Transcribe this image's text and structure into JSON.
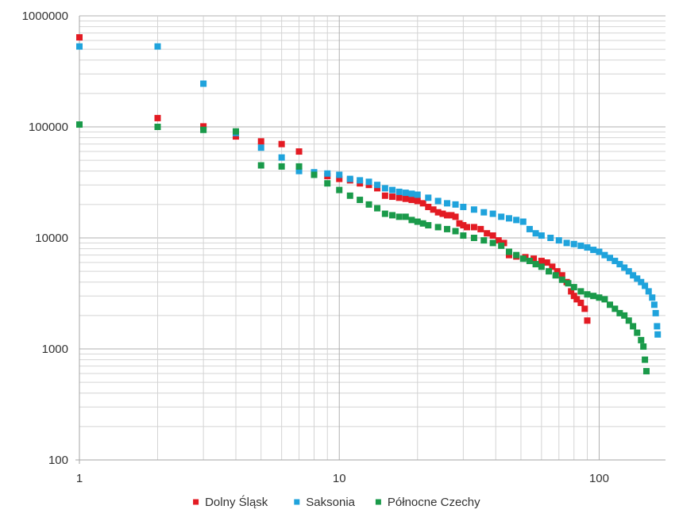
{
  "chart_data": {
    "type": "scatter",
    "title": "",
    "xlabel": "",
    "ylabel": "",
    "x_scale": "log",
    "y_scale": "log",
    "xlim": [
      1,
      180
    ],
    "ylim": [
      100,
      1000000
    ],
    "x_ticks": [
      {
        "value": 1,
        "label": "1"
      },
      {
        "value": 10,
        "label": "10"
      },
      {
        "value": 100,
        "label": "100"
      }
    ],
    "y_ticks": [
      {
        "value": 100,
        "label": "100"
      },
      {
        "value": 1000,
        "label": "1000"
      },
      {
        "value": 10000,
        "label": "10000"
      },
      {
        "value": 100000,
        "label": "100000"
      },
      {
        "value": 1000000,
        "label": "1000000"
      }
    ],
    "grid": true,
    "legend_position": "bottom",
    "series": [
      {
        "name": "Dolny Śląsk",
        "color": "#e31b23",
        "points": [
          [
            1,
            640000
          ],
          [
            2,
            120000
          ],
          [
            3,
            101000
          ],
          [
            4,
            82000
          ],
          [
            5,
            74000
          ],
          [
            6,
            70000
          ],
          [
            7,
            60000
          ],
          [
            8,
            38000
          ],
          [
            9,
            36000
          ],
          [
            10,
            34000
          ],
          [
            11,
            33000
          ],
          [
            12,
            31000
          ],
          [
            13,
            30000
          ],
          [
            14,
            28000
          ],
          [
            15,
            24000
          ],
          [
            16,
            23500
          ],
          [
            17,
            23000
          ],
          [
            18,
            22500
          ],
          [
            19,
            22000
          ],
          [
            20,
            21500
          ],
          [
            21,
            20500
          ],
          [
            22,
            19000
          ],
          [
            23,
            18000
          ],
          [
            24,
            17000
          ],
          [
            25,
            16500
          ],
          [
            26,
            16000
          ],
          [
            27,
            16000
          ],
          [
            28,
            15500
          ],
          [
            29,
            13500
          ],
          [
            30,
            13000
          ],
          [
            31,
            12500
          ],
          [
            33,
            12500
          ],
          [
            35,
            12000
          ],
          [
            37,
            11000
          ],
          [
            39,
            10500
          ],
          [
            41,
            9500
          ],
          [
            43,
            9000
          ],
          [
            45,
            7000
          ],
          [
            48,
            6800
          ],
          [
            52,
            6700
          ],
          [
            56,
            6500
          ],
          [
            60,
            6200
          ],
          [
            63,
            6000
          ],
          [
            66,
            5500
          ],
          [
            69,
            5000
          ],
          [
            72,
            4600
          ],
          [
            75,
            4000
          ],
          [
            78,
            3300
          ],
          [
            80,
            3000
          ],
          [
            82,
            2800
          ],
          [
            85,
            2600
          ],
          [
            88,
            2300
          ],
          [
            90,
            1800
          ]
        ]
      },
      {
        "name": "Saksonia",
        "color": "#1fa3dc",
        "points": [
          [
            1,
            530000
          ],
          [
            2,
            530000
          ],
          [
            3,
            245000
          ],
          [
            4,
            88000
          ],
          [
            5,
            65000
          ],
          [
            6,
            53000
          ],
          [
            7,
            40000
          ],
          [
            8,
            39000
          ],
          [
            9,
            38000
          ],
          [
            10,
            37000
          ],
          [
            11,
            34000
          ],
          [
            12,
            33000
          ],
          [
            13,
            32000
          ],
          [
            14,
            30000
          ],
          [
            15,
            28000
          ],
          [
            16,
            27000
          ],
          [
            17,
            26000
          ],
          [
            18,
            25500
          ],
          [
            19,
            25000
          ],
          [
            20,
            24500
          ],
          [
            22,
            23000
          ],
          [
            24,
            21500
          ],
          [
            26,
            20500
          ],
          [
            28,
            20000
          ],
          [
            30,
            19000
          ],
          [
            33,
            18000
          ],
          [
            36,
            17000
          ],
          [
            39,
            16500
          ],
          [
            42,
            15500
          ],
          [
            45,
            15000
          ],
          [
            48,
            14500
          ],
          [
            51,
            14000
          ],
          [
            54,
            12000
          ],
          [
            57,
            11000
          ],
          [
            60,
            10500
          ],
          [
            65,
            10000
          ],
          [
            70,
            9500
          ],
          [
            75,
            9000
          ],
          [
            80,
            8800
          ],
          [
            85,
            8500
          ],
          [
            90,
            8200
          ],
          [
            95,
            7800
          ],
          [
            100,
            7500
          ],
          [
            105,
            7000
          ],
          [
            110,
            6600
          ],
          [
            115,
            6200
          ],
          [
            120,
            5800
          ],
          [
            125,
            5400
          ],
          [
            130,
            5000
          ],
          [
            135,
            4600
          ],
          [
            140,
            4300
          ],
          [
            145,
            4000
          ],
          [
            150,
            3700
          ],
          [
            155,
            3300
          ],
          [
            160,
            2900
          ],
          [
            163,
            2500
          ],
          [
            165,
            2100
          ],
          [
            167,
            1600
          ],
          [
            168,
            1350
          ]
        ]
      },
      {
        "name": "Północne Czechy",
        "color": "#1a9a4a",
        "points": [
          [
            1,
            105000
          ],
          [
            2,
            100000
          ],
          [
            3,
            94000
          ],
          [
            4,
            91000
          ],
          [
            5,
            45000
          ],
          [
            6,
            44000
          ],
          [
            7,
            44000
          ],
          [
            8,
            37000
          ],
          [
            9,
            31000
          ],
          [
            10,
            27000
          ],
          [
            11,
            24000
          ],
          [
            12,
            22000
          ],
          [
            13,
            20000
          ],
          [
            14,
            18500
          ],
          [
            15,
            16500
          ],
          [
            16,
            16000
          ],
          [
            17,
            15500
          ],
          [
            18,
            15500
          ],
          [
            19,
            14500
          ],
          [
            20,
            14000
          ],
          [
            21,
            13500
          ],
          [
            22,
            13000
          ],
          [
            24,
            12500
          ],
          [
            26,
            12000
          ],
          [
            28,
            11500
          ],
          [
            30,
            10500
          ],
          [
            33,
            10000
          ],
          [
            36,
            9500
          ],
          [
            39,
            9000
          ],
          [
            42,
            8500
          ],
          [
            45,
            7500
          ],
          [
            48,
            7000
          ],
          [
            51,
            6500
          ],
          [
            54,
            6200
          ],
          [
            57,
            5800
          ],
          [
            60,
            5500
          ],
          [
            64,
            5000
          ],
          [
            68,
            4600
          ],
          [
            72,
            4200
          ],
          [
            76,
            3900
          ],
          [
            80,
            3600
          ],
          [
            85,
            3300
          ],
          [
            90,
            3100
          ],
          [
            95,
            3000
          ],
          [
            100,
            2900
          ],
          [
            105,
            2800
          ],
          [
            110,
            2500
          ],
          [
            115,
            2300
          ],
          [
            120,
            2100
          ],
          [
            125,
            2000
          ],
          [
            130,
            1800
          ],
          [
            135,
            1600
          ],
          [
            140,
            1400
          ],
          [
            145,
            1200
          ],
          [
            148,
            1050
          ],
          [
            150,
            800
          ],
          [
            152,
            630
          ]
        ]
      }
    ]
  }
}
